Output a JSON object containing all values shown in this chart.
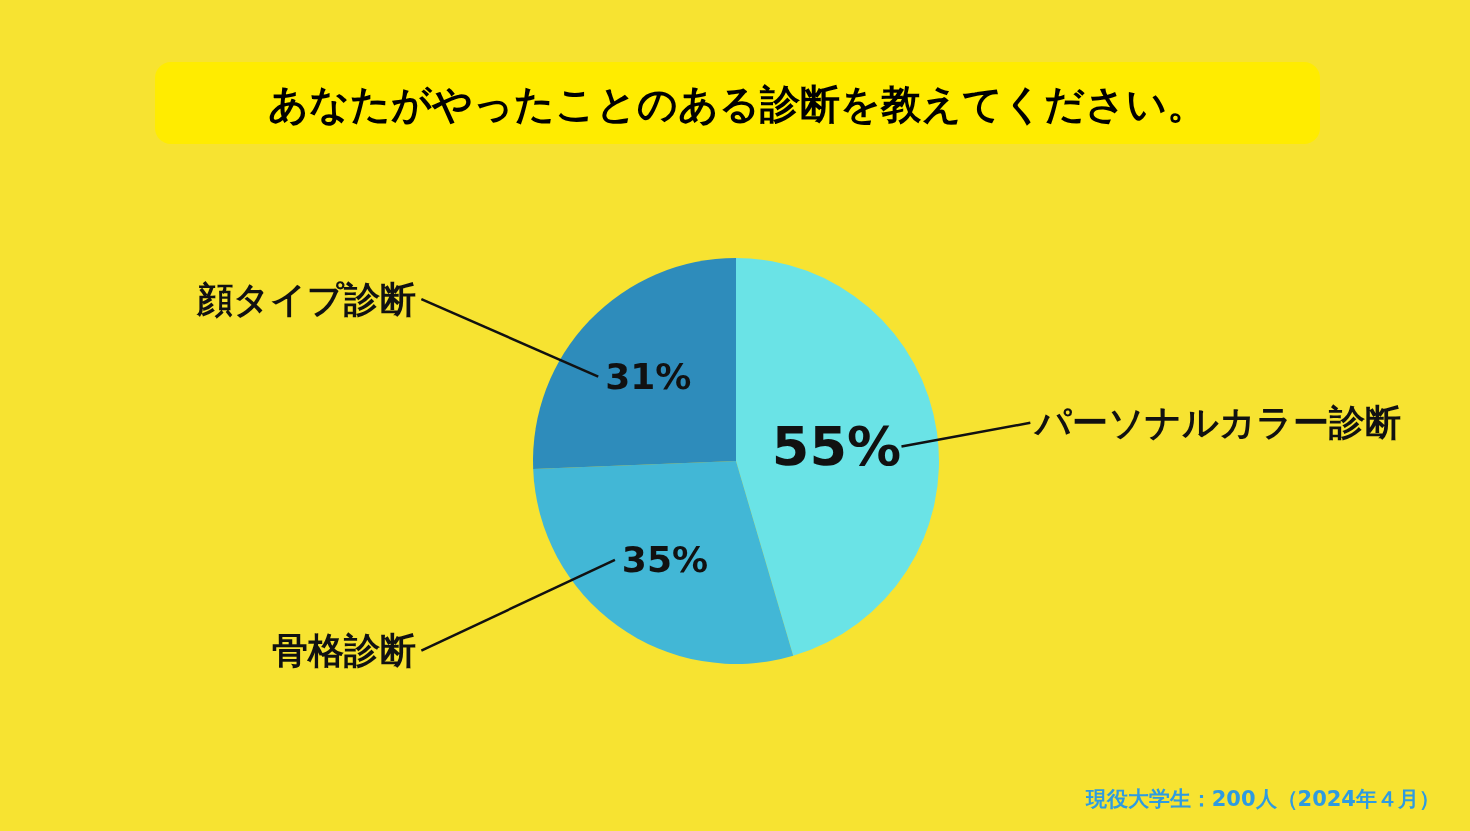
{
  "chart_data": {
    "type": "pie",
    "title": "あなたがやったことのある診断を教えてください。",
    "categories": [
      "パーソナルカラー診断",
      "骨格診断",
      "顔タイプ診断"
    ],
    "values": [
      55,
      35,
      31
    ],
    "colors": [
      "#6ae3e6",
      "#42b7d6",
      "#2e8cbb"
    ],
    "value_labels": [
      "55%",
      "35%",
      "31%"
    ],
    "annotations": [
      "現役大学生：200人（2024年４月）"
    ]
  }
}
